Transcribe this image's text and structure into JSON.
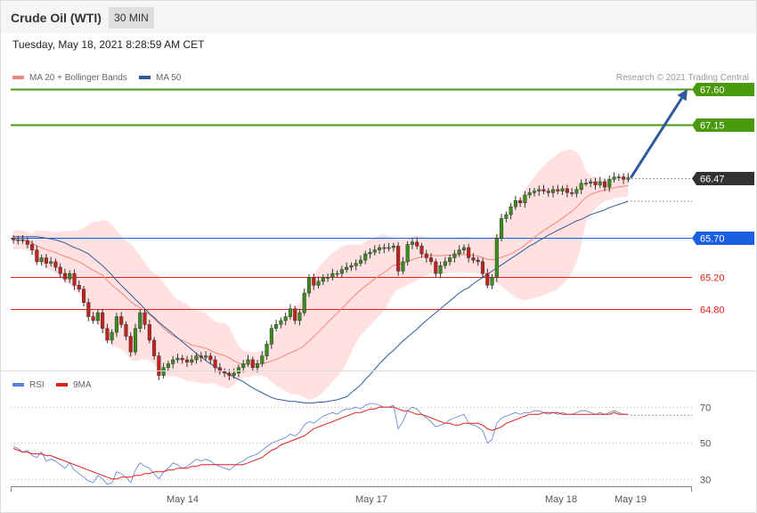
{
  "header": {
    "title": "Crude Oil (WTI)",
    "timeframe": "30 MIN",
    "datetime": "Tuesday, May 18, 2021 8:28:59 AM CET"
  },
  "legend": {
    "ma20_label": "MA 20 + Bollinger Bands",
    "ma50_label": "MA 50",
    "ma20_color": "#f4857a",
    "ma50_color": "#2e5a9c",
    "copyright": "Research © 2021 Trading Central"
  },
  "rsi_legend": {
    "rsi_label": "RSI",
    "ma9_label": "9MA",
    "rsi_color": "#5b7fd6",
    "ma9_color": "#e0201a"
  },
  "chart_data": [
    {
      "type": "candlestick",
      "title": "Crude Oil (WTI)",
      "ylim": [
        63.9,
        68.1
      ],
      "levels": [
        {
          "value": 67.6,
          "label": "67.60",
          "kind": "resistance",
          "color": "#4a9a0d"
        },
        {
          "value": 67.15,
          "label": "67.15",
          "kind": "resistance",
          "color": "#4a9a0d"
        },
        {
          "value": 66.47,
          "label": "66.47",
          "kind": "last",
          "color": "#333333"
        },
        {
          "value": 65.7,
          "label": "65.70",
          "kind": "pivot",
          "color": "#1a5fe0"
        },
        {
          "value": 65.2,
          "label": "65.20",
          "kind": "support",
          "color": "#e0201a"
        },
        {
          "value": 64.8,
          "label": "64.80",
          "kind": "support",
          "color": "#e0201a"
        }
      ],
      "arrow": {
        "from": 66.47,
        "to": 67.6
      },
      "close": [
        65.68,
        65.68,
        65.67,
        65.62,
        65.55,
        65.4,
        65.45,
        65.38,
        65.4,
        65.33,
        65.25,
        65.18,
        65.25,
        65.1,
        65.05,
        64.88,
        64.7,
        64.65,
        64.75,
        64.55,
        64.4,
        64.5,
        64.7,
        64.6,
        64.45,
        64.25,
        64.55,
        64.75,
        64.6,
        64.4,
        64.2,
        63.95,
        64.05,
        64.1,
        64.15,
        64.17,
        64.15,
        64.12,
        64.15,
        64.2,
        64.18,
        64.2,
        64.15,
        64.05,
        64.0,
        63.98,
        63.95,
        63.98,
        64.05,
        64.1,
        64.15,
        64.05,
        64.1,
        64.2,
        64.35,
        64.55,
        64.6,
        64.65,
        64.7,
        64.8,
        64.65,
        64.75,
        65.0,
        65.2,
        65.1,
        65.15,
        65.2,
        65.2,
        65.25,
        65.25,
        65.3,
        65.33,
        65.35,
        65.38,
        65.42,
        65.5,
        65.52,
        65.55,
        65.58,
        65.57,
        65.58,
        65.6,
        65.28,
        65.4,
        65.62,
        65.65,
        65.6,
        65.5,
        65.45,
        65.4,
        65.25,
        65.35,
        65.4,
        65.45,
        65.5,
        65.55,
        65.58,
        65.45,
        65.42,
        65.4,
        65.25,
        65.1,
        65.2,
        65.7,
        65.95,
        66.0,
        66.1,
        66.18,
        66.15,
        66.25,
        66.28,
        66.3,
        66.32,
        66.3,
        66.28,
        66.32,
        66.3,
        66.33,
        66.28,
        66.27,
        66.32,
        66.4,
        66.4,
        66.42,
        66.38,
        66.42,
        66.35,
        66.45,
        66.48,
        66.48,
        66.45,
        66.47
      ],
      "ma50": [
        65.72,
        65.72,
        65.72,
        65.72,
        65.72,
        65.72,
        65.71,
        65.7,
        65.69,
        65.68,
        65.66,
        65.64,
        65.61,
        65.58,
        65.56,
        65.53,
        65.5,
        65.45,
        65.4,
        65.35,
        65.29,
        65.23,
        65.16,
        65.1,
        65.04,
        64.98,
        64.92,
        64.86,
        64.8,
        64.74,
        64.69,
        64.63,
        64.58,
        64.53,
        64.48,
        64.43,
        64.38,
        64.33,
        64.28,
        64.23,
        64.19,
        64.14,
        64.1,
        64.06,
        64.03,
        63.99,
        63.96,
        63.93,
        63.9,
        63.87,
        63.83,
        63.79,
        63.76,
        63.73,
        63.7,
        63.67,
        63.65,
        63.64,
        63.63,
        63.62,
        63.62,
        63.61,
        63.6,
        63.6,
        63.6,
        63.61,
        63.61,
        63.62,
        63.63,
        63.64,
        63.66,
        63.68,
        63.73,
        63.78,
        63.83,
        63.9,
        63.96,
        64.03,
        64.1,
        64.16,
        64.22,
        64.27,
        64.33,
        64.39,
        64.44,
        64.49,
        64.54,
        64.6,
        64.65,
        64.7,
        64.75,
        64.8,
        64.85,
        64.9,
        64.95,
        65.0,
        65.04,
        65.07,
        65.12,
        65.16,
        65.2,
        65.24,
        65.28,
        65.32,
        65.36,
        65.4,
        65.44,
        65.48,
        65.52,
        65.56,
        65.6,
        65.63,
        65.67,
        65.7,
        65.74,
        65.77,
        65.8,
        65.83,
        65.86,
        65.89,
        65.92,
        65.94,
        65.97,
        66.0,
        66.02,
        66.04,
        66.06,
        66.09,
        66.11,
        66.13,
        66.15,
        66.17
      ]
    },
    {
      "type": "line",
      "title": "RSI",
      "ylim": [
        21,
        78
      ],
      "ticks": [
        70,
        50,
        30
      ],
      "x_ticks": [
        "May 14",
        "May 17",
        "May 18",
        "May 19"
      ],
      "series": [
        {
          "name": "RSI",
          "values": [
            48,
            47,
            45,
            46,
            43,
            42,
            45,
            40,
            41,
            40,
            38,
            36,
            39,
            35,
            33,
            31,
            29,
            28,
            32,
            30,
            27,
            28,
            34,
            33,
            31,
            28,
            35,
            39,
            37,
            36,
            33,
            30,
            34,
            36,
            39,
            38,
            36,
            37,
            39,
            41,
            40,
            41,
            40,
            38,
            37,
            36,
            35,
            37,
            39,
            40,
            42,
            43,
            44,
            46,
            48,
            50,
            51,
            52,
            53,
            55,
            54,
            56,
            60,
            62,
            61,
            63,
            65,
            66,
            67,
            66,
            68,
            69,
            69,
            70,
            69,
            71,
            72,
            72,
            71,
            70,
            70,
            71,
            58,
            62,
            68,
            70,
            69,
            66,
            64,
            62,
            59,
            60,
            61,
            63,
            64,
            65,
            66,
            61,
            60,
            59,
            57,
            50,
            52,
            61,
            64,
            65,
            66,
            67,
            66,
            67,
            67,
            68,
            68,
            67,
            66,
            67,
            66,
            67,
            66,
            66,
            67,
            68,
            68,
            67,
            66,
            67,
            66,
            67,
            68,
            67,
            66,
            66
          ]
        },
        {
          "name": "9MA",
          "values": [
            47,
            46,
            45,
            45,
            44,
            44,
            44,
            43,
            43,
            42,
            41,
            40,
            39,
            38,
            37,
            36,
            35,
            34,
            33,
            32,
            31,
            30,
            30,
            31,
            31,
            31,
            32,
            32,
            33,
            33,
            34,
            34,
            34,
            35,
            35,
            36,
            36,
            36,
            37,
            37,
            38,
            38,
            38,
            38,
            38,
            38,
            38,
            38,
            38,
            38,
            39,
            40,
            41,
            42,
            44,
            46,
            47,
            49,
            50,
            51,
            52,
            53,
            54,
            56,
            58,
            59,
            60,
            61,
            62,
            63,
            64,
            65,
            66,
            67,
            67,
            68,
            69,
            69,
            70,
            70,
            70,
            70,
            69,
            68,
            68,
            67,
            66,
            66,
            65,
            64,
            63,
            62,
            61,
            61,
            60,
            60,
            61,
            61,
            61,
            61,
            60,
            58,
            57,
            58,
            59,
            61,
            62,
            63,
            64,
            65,
            66,
            66,
            66,
            67,
            67,
            67,
            67,
            66,
            66,
            66,
            66,
            66,
            66,
            66,
            66,
            66,
            66,
            66,
            67,
            66,
            66,
            66
          ]
        }
      ]
    }
  ]
}
